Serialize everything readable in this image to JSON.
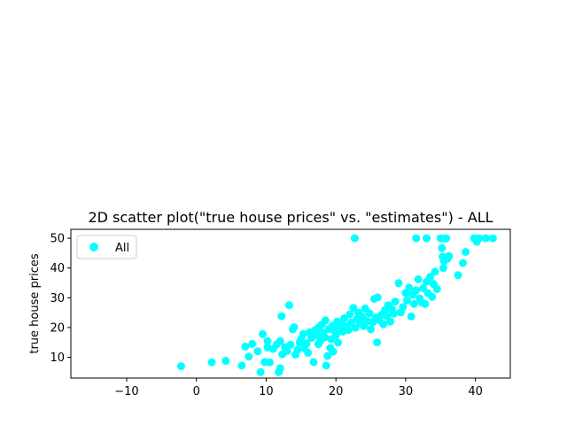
{
  "chart_data": {
    "type": "scatter",
    "title": "2D scatter plot(\"true house prices\" vs. \"estimates\") - ALL",
    "xlabel": "",
    "ylabel": "true house prices",
    "xlim": [
      -18,
      45
    ],
    "ylim": [
      3,
      53
    ],
    "x_ticks": [
      -10,
      0,
      10,
      20,
      30,
      40
    ],
    "y_ticks": [
      10,
      20,
      30,
      40,
      50
    ],
    "grid": false,
    "legend_position": "upper-left",
    "series": [
      {
        "name": "All",
        "color": "#00ffff",
        "points": [
          [
            -2.2,
            7.0
          ],
          [
            2.2,
            8.3
          ],
          [
            4.2,
            8.8
          ],
          [
            6.5,
            7.2
          ],
          [
            7.0,
            13.6
          ],
          [
            7.5,
            10.2
          ],
          [
            8.0,
            14.5
          ],
          [
            8.8,
            12.0
          ],
          [
            9.2,
            5.0
          ],
          [
            9.5,
            17.8
          ],
          [
            9.8,
            8.4
          ],
          [
            10.2,
            13.3
          ],
          [
            10.2,
            15.4
          ],
          [
            10.5,
            8.3
          ],
          [
            11.0,
            12.8
          ],
          [
            11.5,
            14.3
          ],
          [
            11.8,
            5.0
          ],
          [
            12.0,
            6.3
          ],
          [
            12.0,
            15.4
          ],
          [
            12.3,
            11.0
          ],
          [
            12.2,
            23.8
          ],
          [
            12.7,
            13.4
          ],
          [
            13.0,
            12.1
          ],
          [
            13.3,
            27.5
          ],
          [
            13.5,
            14.2
          ],
          [
            13.8,
            19.4
          ],
          [
            14.0,
            20.1
          ],
          [
            14.2,
            10.9
          ],
          [
            14.5,
            12.5
          ],
          [
            14.8,
            15.0
          ],
          [
            15.0,
            16.0
          ],
          [
            15.3,
            17.8
          ],
          [
            15.5,
            13.0
          ],
          [
            15.8,
            14.6
          ],
          [
            16.0,
            11.5
          ],
          [
            16.2,
            18.4
          ],
          [
            16.5,
            16.5
          ],
          [
            16.8,
            8.4
          ],
          [
            17.0,
            19.1
          ],
          [
            17.3,
            17.5
          ],
          [
            17.5,
            20.0
          ],
          [
            17.5,
            14.4
          ],
          [
            17.8,
            15.6
          ],
          [
            18.0,
            21.0
          ],
          [
            18.2,
            18.2
          ],
          [
            18.4,
            16.7
          ],
          [
            18.5,
            22.4
          ],
          [
            18.6,
            7.2
          ],
          [
            18.8,
            10.4
          ],
          [
            19.0,
            19.5
          ],
          [
            19.2,
            13.1
          ],
          [
            19.3,
            16.1
          ],
          [
            19.5,
            20.6
          ],
          [
            19.6,
            11.9
          ],
          [
            19.8,
            18.9
          ],
          [
            20.0,
            17.4
          ],
          [
            20.2,
            22.0
          ],
          [
            20.3,
            14.9
          ],
          [
            20.5,
            19.7
          ],
          [
            20.8,
            21.2
          ],
          [
            21.0,
            18.6
          ],
          [
            21.2,
            23.1
          ],
          [
            21.5,
            20.3
          ],
          [
            21.8,
            19.2
          ],
          [
            22.0,
            24.4
          ],
          [
            22.2,
            21.7
          ],
          [
            22.5,
            26.6
          ],
          [
            22.7,
            50.0
          ],
          [
            22.8,
            19.9
          ],
          [
            23.0,
            22.8
          ],
          [
            23.2,
            25.0
          ],
          [
            23.5,
            21.4
          ],
          [
            23.8,
            23.6
          ],
          [
            24.0,
            20.5
          ],
          [
            24.2,
            26.4
          ],
          [
            24.5,
            22.1
          ],
          [
            24.8,
            24.8
          ],
          [
            25.0,
            19.4
          ],
          [
            25.3,
            21.8
          ],
          [
            25.5,
            29.6
          ],
          [
            25.7,
            23.3
          ],
          [
            25.9,
            15.0
          ],
          [
            26.0,
            30.1
          ],
          [
            26.2,
            22.5
          ],
          [
            26.5,
            24.1
          ],
          [
            26.8,
            21.1
          ],
          [
            27.0,
            25.8
          ],
          [
            27.3,
            23.9
          ],
          [
            27.5,
            27.5
          ],
          [
            27.8,
            22.0
          ],
          [
            28.0,
            26.2
          ],
          [
            28.3,
            24.7
          ],
          [
            28.5,
            28.7
          ],
          [
            29.0,
            34.9
          ],
          [
            29.3,
            25.1
          ],
          [
            29.6,
            26.9
          ],
          [
            30.0,
            31.6
          ],
          [
            30.2,
            29.1
          ],
          [
            30.5,
            33.4
          ],
          [
            30.8,
            23.7
          ],
          [
            31.0,
            31.0
          ],
          [
            31.2,
            27.9
          ],
          [
            31.5,
            50.0
          ],
          [
            31.5,
            32.5
          ],
          [
            31.8,
            36.2
          ],
          [
            32.0,
            29.8
          ],
          [
            32.3,
            28.4
          ],
          [
            32.5,
            33.2
          ],
          [
            32.8,
            27.9
          ],
          [
            33.0,
            50.0
          ],
          [
            33.0,
            35.4
          ],
          [
            33.2,
            31.5
          ],
          [
            33.5,
            37.0
          ],
          [
            33.8,
            30.3
          ],
          [
            34.0,
            34.6
          ],
          [
            34.2,
            38.7
          ],
          [
            34.5,
            32.9
          ],
          [
            35.0,
            50.0
          ],
          [
            35.2,
            46.7
          ],
          [
            35.3,
            43.8
          ],
          [
            35.4,
            40.0
          ],
          [
            35.5,
            42.3
          ],
          [
            35.6,
            49.9
          ],
          [
            35.8,
            50.0
          ],
          [
            36.0,
            43.1
          ],
          [
            36.2,
            44.0
          ],
          [
            37.5,
            37.6
          ],
          [
            38.2,
            41.7
          ],
          [
            38.6,
            45.4
          ],
          [
            39.8,
            50.0
          ],
          [
            40.2,
            48.8
          ],
          [
            40.5,
            50.0
          ],
          [
            41.5,
            50.0
          ],
          [
            42.5,
            50.0
          ]
        ]
      }
    ]
  }
}
